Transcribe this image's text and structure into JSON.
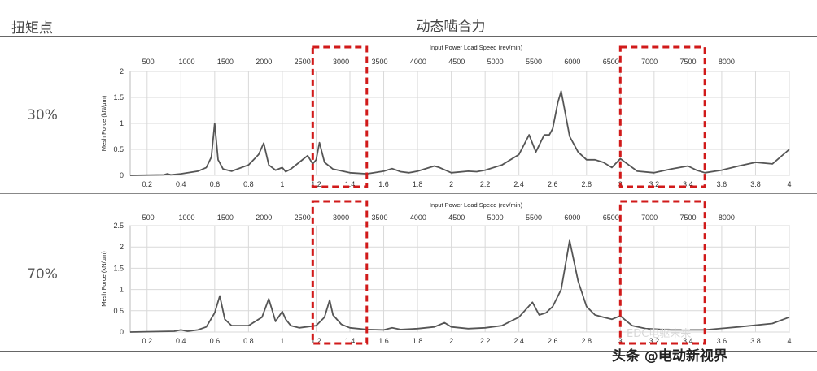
{
  "header": {
    "left": "扭矩点",
    "main": "动态啮合力"
  },
  "rows": [
    {
      "label": "30%"
    },
    {
      "label": "70%"
    }
  ],
  "watermark": {
    "small": "EDC电驱未来",
    "main": "头条 @电动新视界"
  },
  "colors": {
    "curve": "#555555",
    "highlight": "#d11a1a",
    "grid": "#d9d9d9"
  },
  "chart_data": [
    {
      "type": "line",
      "title": "",
      "top_axis_label": "Input Power Load Speed (rev/min)",
      "top_ticks": [
        "500",
        "1000",
        "1500",
        "2000",
        "2500",
        "3000",
        "3500",
        "4000",
        "4500",
        "5000",
        "5500",
        "6000",
        "6500",
        "7000",
        "7500",
        "8000"
      ],
      "ylabel": "Mesh Force (kN/µm)",
      "xlim": [
        0.1,
        4.0
      ],
      "ylim": [
        0,
        2
      ],
      "x_ticks": [
        "0.2",
        "0.4",
        "0.6",
        "0.8",
        "1",
        "1.2",
        "1.4",
        "1.6",
        "1.8",
        "2",
        "2.2",
        "2.4",
        "2.6",
        "2.8",
        "3",
        "3.2",
        "3.4",
        "3.6",
        "3.8",
        "4"
      ],
      "y_ticks": [
        "0",
        "0.5",
        "1",
        "1.5",
        "2"
      ],
      "grid": true,
      "highlight_ranges_x": [
        [
          1.18,
          1.5
        ],
        [
          3.0,
          3.5
        ]
      ],
      "series": [
        {
          "x": [
            0.1,
            0.3,
            0.32,
            0.34,
            0.4,
            0.5,
            0.55,
            0.58,
            0.6,
            0.62,
            0.65,
            0.7,
            0.8,
            0.86,
            0.89,
            0.92,
            0.96,
            1.0,
            1.02,
            1.05,
            1.1,
            1.15,
            1.18,
            1.2,
            1.22,
            1.25,
            1.3,
            1.4,
            1.5,
            1.6,
            1.65,
            1.7,
            1.75,
            1.8,
            1.9,
            1.93,
            2.0,
            2.1,
            2.15,
            2.2,
            2.3,
            2.4,
            2.46,
            2.5,
            2.55,
            2.58,
            2.6,
            2.63,
            2.65,
            2.7,
            2.75,
            2.8,
            2.85,
            2.9,
            2.95,
            3.0,
            3.05,
            3.1,
            3.2,
            3.3,
            3.4,
            3.45,
            3.5,
            3.6,
            3.7,
            3.8,
            3.9,
            4.0
          ],
          "y": [
            0.0,
            0.01,
            0.03,
            0.01,
            0.03,
            0.08,
            0.15,
            0.35,
            1.0,
            0.3,
            0.12,
            0.08,
            0.2,
            0.4,
            0.62,
            0.2,
            0.1,
            0.15,
            0.07,
            0.12,
            0.25,
            0.38,
            0.22,
            0.3,
            0.63,
            0.25,
            0.12,
            0.05,
            0.03,
            0.08,
            0.13,
            0.07,
            0.05,
            0.08,
            0.18,
            0.15,
            0.05,
            0.08,
            0.07,
            0.1,
            0.2,
            0.4,
            0.78,
            0.45,
            0.78,
            0.78,
            0.9,
            1.4,
            1.62,
            0.75,
            0.45,
            0.3,
            0.3,
            0.25,
            0.15,
            0.32,
            0.2,
            0.08,
            0.05,
            0.12,
            0.18,
            0.1,
            0.05,
            0.1,
            0.18,
            0.25,
            0.22,
            0.5
          ]
        }
      ]
    },
    {
      "type": "line",
      "title": "",
      "top_axis_label": "Input Power Load Speed (rev/min)",
      "top_ticks": [
        "500",
        "1000",
        "1500",
        "2000",
        "2500",
        "3000",
        "3500",
        "4000",
        "4500",
        "5000",
        "5500",
        "6000",
        "6500",
        "7000",
        "7500",
        "8000"
      ],
      "ylabel": "Mesh Force (kN/µm)",
      "xlim": [
        0.1,
        4.0
      ],
      "ylim": [
        0,
        2.5
      ],
      "x_ticks": [
        "0.2",
        "0.4",
        "0.6",
        "0.8",
        "1",
        "1.2",
        "1.4",
        "1.6",
        "1.8",
        "2",
        "2.2",
        "2.4",
        "2.6",
        "2.8",
        "3",
        "3.2",
        "3.4",
        "3.6",
        "3.8",
        "4"
      ],
      "y_ticks": [
        "0",
        "0.5",
        "1",
        "1.5",
        "2",
        "2.5"
      ],
      "grid": true,
      "highlight_ranges_x": [
        [
          1.18,
          1.5
        ],
        [
          3.0,
          3.5
        ]
      ],
      "series": [
        {
          "x": [
            0.1,
            0.36,
            0.4,
            0.44,
            0.5,
            0.55,
            0.6,
            0.63,
            0.66,
            0.7,
            0.8,
            0.88,
            0.92,
            0.96,
            1.0,
            1.02,
            1.05,
            1.1,
            1.2,
            1.25,
            1.28,
            1.3,
            1.35,
            1.4,
            1.5,
            1.6,
            1.65,
            1.7,
            1.8,
            1.9,
            1.96,
            2.0,
            2.1,
            2.2,
            2.3,
            2.4,
            2.48,
            2.52,
            2.56,
            2.6,
            2.65,
            2.7,
            2.75,
            2.8,
            2.85,
            2.9,
            2.95,
            3.0,
            3.03,
            3.07,
            3.15,
            3.3,
            3.5,
            3.7,
            3.9,
            4.0
          ],
          "y": [
            0.0,
            0.02,
            0.05,
            0.02,
            0.05,
            0.12,
            0.45,
            0.85,
            0.3,
            0.15,
            0.15,
            0.35,
            0.78,
            0.25,
            0.48,
            0.3,
            0.15,
            0.1,
            0.15,
            0.35,
            0.75,
            0.4,
            0.18,
            0.1,
            0.06,
            0.05,
            0.1,
            0.06,
            0.08,
            0.12,
            0.22,
            0.12,
            0.08,
            0.1,
            0.15,
            0.35,
            0.7,
            0.4,
            0.45,
            0.6,
            1.0,
            2.15,
            1.2,
            0.6,
            0.4,
            0.35,
            0.3,
            0.38,
            0.28,
            0.15,
            0.08,
            0.05,
            0.05,
            0.12,
            0.2,
            0.35
          ]
        }
      ]
    }
  ]
}
